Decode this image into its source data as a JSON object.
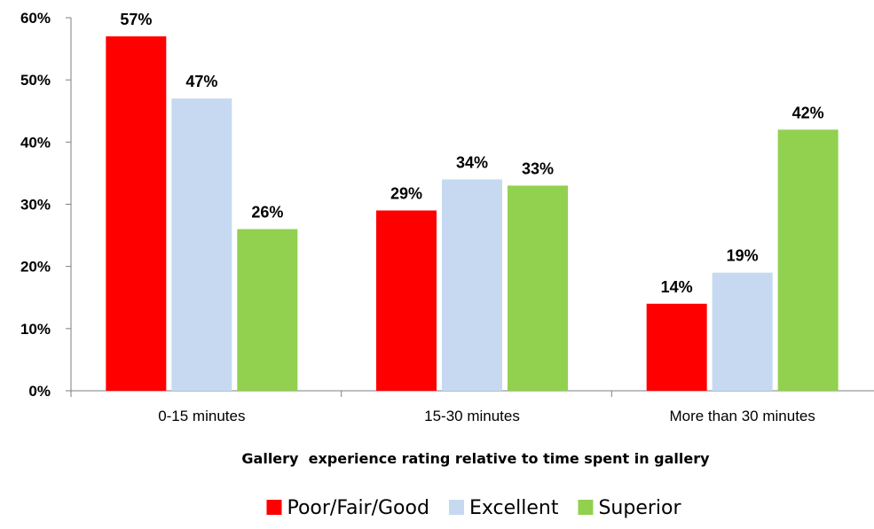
{
  "chart_data": {
    "type": "bar",
    "title": "",
    "xlabel": "Gallery  experience rating relative to time spent in gallery",
    "ylabel": "",
    "ylim": [
      0,
      60
    ],
    "yticks": [
      0,
      10,
      20,
      30,
      40,
      50,
      60
    ],
    "ytick_labels": [
      "0%",
      "10%",
      "20%",
      "30%",
      "40%",
      "50%",
      "60%"
    ],
    "categories": [
      "0-15 minutes",
      "15-30 minutes",
      "More than  30 minutes"
    ],
    "series": [
      {
        "name": "Poor/Fair/Good",
        "color": "#ff0000",
        "values": [
          57,
          29,
          14
        ],
        "labels": [
          "57%",
          "29%",
          "14%"
        ]
      },
      {
        "name": "Excellent",
        "color": "#c6d9f1",
        "values": [
          47,
          34,
          19
        ],
        "labels": [
          "47%",
          "34%",
          "19%"
        ]
      },
      {
        "name": "Superior",
        "color": "#92d050",
        "values": [
          26,
          33,
          42
        ],
        "labels": [
          "26%",
          "33%",
          "42%"
        ]
      }
    ],
    "grid": false,
    "legend": "bottom"
  }
}
